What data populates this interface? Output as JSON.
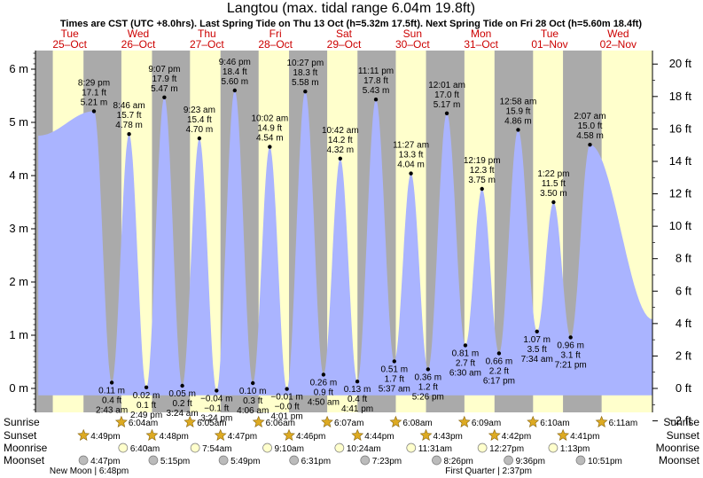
{
  "chart_data": {
    "type": "area",
    "title": "Langtou (max. tidal range 6.04m 19.8ft)",
    "subtitle": "Times are CST (UTC +8.0hrs). Last Spring Tide on Thu 13 Oct (h=5.32m 17.5ft). Next Spring Tide on Fri 28 Oct (h=5.60m 18.4ft)",
    "days": [
      {
        "dow": "Tue",
        "date": "25–Oct"
      },
      {
        "dow": "Wed",
        "date": "26–Oct"
      },
      {
        "dow": "Thu",
        "date": "27–Oct"
      },
      {
        "dow": "Fri",
        "date": "28–Oct"
      },
      {
        "dow": "Sat",
        "date": "29–Oct"
      },
      {
        "dow": "Sun",
        "date": "30–Oct"
      },
      {
        "dow": "Mon",
        "date": "31–Oct"
      },
      {
        "dow": "Tue",
        "date": "01–Nov"
      },
      {
        "dow": "Wed",
        "date": "02–Nov"
      }
    ],
    "y_left": {
      "unit": "m",
      "range": [
        -0.45,
        6.35
      ],
      "ticks": [
        "6 m",
        "5 m",
        "4 m",
        "3 m",
        "2 m",
        "1 m",
        "0 m"
      ],
      "tick_values": [
        6,
        5,
        4,
        3,
        2,
        1,
        0
      ]
    },
    "y_right": {
      "unit": "ft",
      "ticks": [
        "20 ft",
        "18 ft",
        "16 ft",
        "14 ft",
        "12 ft",
        "10 ft",
        "8 ft",
        "6 ft",
        "4 ft",
        "2 ft",
        "0 ft",
        "−2 ft"
      ],
      "tick_values": [
        20,
        18,
        16,
        14,
        12,
        10,
        8,
        6,
        4,
        2,
        0,
        -2
      ]
    },
    "x_range_hours": [
      0,
      216
    ],
    "series_start": {
      "t": 1.0,
      "h": 4.75
    },
    "series_end": {
      "t": 216.0,
      "h": 1.3
    },
    "tides": [
      {
        "t": 20.48,
        "h": 5.21,
        "type": "high",
        "time": "8:29 pm",
        "ft": "17.1 ft",
        "m": "5.21 m"
      },
      {
        "t": 26.72,
        "h": 0.11,
        "type": "low",
        "time": "2:43 am",
        "ft": "0.4 ft",
        "m": "0.11 m"
      },
      {
        "t": 32.77,
        "h": 4.78,
        "type": "high",
        "time": "8:46 am",
        "ft": "15.7 ft",
        "m": "4.78 m"
      },
      {
        "t": 38.82,
        "h": 0.02,
        "type": "low",
        "time": "2:49 pm",
        "ft": "0.1 ft",
        "m": "0.02 m"
      },
      {
        "t": 45.12,
        "h": 5.47,
        "type": "high",
        "time": "9:07 pm",
        "ft": "17.9 ft",
        "m": "5.47 m"
      },
      {
        "t": 51.4,
        "h": 0.05,
        "type": "low",
        "time": "3:24 am",
        "ft": "0.2 ft",
        "m": "0.05 m"
      },
      {
        "t": 57.38,
        "h": 4.7,
        "type": "high",
        "time": "9:23 am",
        "ft": "15.4 ft",
        "m": "4.70 m"
      },
      {
        "t": 63.4,
        "h": -0.04,
        "type": "low",
        "time": "3:24 pm",
        "ft": "−0.1 ft",
        "m": "−0.04 m"
      },
      {
        "t": 69.77,
        "h": 5.6,
        "type": "high",
        "time": "9:46 pm",
        "ft": "18.4 ft",
        "m": "5.60 m"
      },
      {
        "t": 76.1,
        "h": 0.1,
        "type": "low",
        "time": "4:06 am",
        "ft": "0.3 ft",
        "m": "0.10 m"
      },
      {
        "t": 82.03,
        "h": 4.54,
        "type": "high",
        "time": "10:02 am",
        "ft": "14.9 ft",
        "m": "4.54 m"
      },
      {
        "t": 88.02,
        "h": -0.01,
        "type": "low",
        "time": "4:01 pm",
        "ft": "−0.0 ft",
        "m": "−0.01 m"
      },
      {
        "t": 94.45,
        "h": 5.58,
        "type": "high",
        "time": "10:27 pm",
        "ft": "18.3 ft",
        "m": "5.58 m"
      },
      {
        "t": 100.83,
        "h": 0.26,
        "type": "low",
        "time": "4:50 am",
        "ft": "0.9 ft",
        "m": "0.26 m"
      },
      {
        "t": 106.7,
        "h": 4.32,
        "type": "high",
        "time": "10:42 am",
        "ft": "14.2 ft",
        "m": "4.32 m"
      },
      {
        "t": 112.68,
        "h": 0.13,
        "type": "low",
        "time": "4:41 pm",
        "ft": "0.4 ft",
        "m": "0.13 m"
      },
      {
        "t": 119.18,
        "h": 5.43,
        "type": "high",
        "time": "11:11 pm",
        "ft": "17.8 ft",
        "m": "5.43 m"
      },
      {
        "t": 125.62,
        "h": 0.51,
        "type": "low",
        "time": "5:37 am",
        "ft": "1.7 ft",
        "m": "0.51 m"
      },
      {
        "t": 131.45,
        "h": 4.04,
        "type": "high",
        "time": "11:27 am",
        "ft": "13.3 ft",
        "m": "4.04 m"
      },
      {
        "t": 137.43,
        "h": 0.36,
        "type": "low",
        "time": "5:26 pm",
        "ft": "1.2 ft",
        "m": "0.36 m"
      },
      {
        "t": 144.02,
        "h": 5.17,
        "type": "high",
        "time": "12:01 am",
        "ft": "17.0 ft",
        "m": "5.17 m"
      },
      {
        "t": 150.5,
        "h": 0.81,
        "type": "low",
        "time": "6:30 am",
        "ft": "2.7 ft",
        "m": "0.81 m"
      },
      {
        "t": 156.32,
        "h": 3.75,
        "type": "high",
        "time": "12:19 pm",
        "ft": "12.3 ft",
        "m": "3.75 m"
      },
      {
        "t": 162.28,
        "h": 0.66,
        "type": "low",
        "time": "6:17 pm",
        "ft": "2.2 ft",
        "m": "0.66 m"
      },
      {
        "t": 168.97,
        "h": 4.86,
        "type": "high",
        "time": "12:58 am",
        "ft": "15.9 ft",
        "m": "4.86 m"
      },
      {
        "t": 175.57,
        "h": 1.07,
        "type": "low",
        "time": "7:34 am",
        "ft": "3.5 ft",
        "m": "1.07 m"
      },
      {
        "t": 181.37,
        "h": 3.5,
        "type": "high",
        "time": "1:22 pm",
        "ft": "11.5 ft",
        "m": "3.50 m"
      },
      {
        "t": 187.35,
        "h": 0.96,
        "type": "low",
        "time": "7:21 pm",
        "ft": "3.1 ft",
        "m": "0.96 m"
      },
      {
        "t": 194.12,
        "h": 4.58,
        "type": "high",
        "time": "2:07 am",
        "ft": "15.0 ft",
        "m": "4.58 m"
      }
    ],
    "nights": [
      {
        "start": 0,
        "end": 6.07
      },
      {
        "start": 16.82,
        "end": 30.08
      },
      {
        "start": 40.8,
        "end": 54.1
      },
      {
        "start": 64.78,
        "end": 78.12
      },
      {
        "start": 88.77,
        "end": 102.13
      },
      {
        "start": 112.73,
        "end": 126.15
      },
      {
        "start": 136.72,
        "end": 150.17
      },
      {
        "start": 160.7,
        "end": 174.2
      },
      {
        "start": 184.68,
        "end": 198.2
      }
    ],
    "colors": {
      "day": "#ffffcc",
      "night": "#aaaaaa",
      "water": "#aab4ff",
      "axis": "#000000",
      "day_label": "#cc0000",
      "sun": "#ddaa22",
      "moon": "#ffffcc",
      "moonset": "#bbbbbb"
    }
  },
  "astro": {
    "row_labels": [
      "Sunrise",
      "Sunset",
      "Moonrise",
      "Moonset"
    ],
    "sunrise": [
      {
        "t": 30.07,
        "label": "6:04am"
      },
      {
        "t": 54.08,
        "label": "6:05am"
      },
      {
        "t": 78.1,
        "label": "6:06am"
      },
      {
        "t": 102.12,
        "label": "6:07am"
      },
      {
        "t": 126.13,
        "label": "6:08am"
      },
      {
        "t": 150.15,
        "label": "6:09am"
      },
      {
        "t": 174.17,
        "label": "6:10am"
      },
      {
        "t": 198.18,
        "label": "6:11am"
      }
    ],
    "sunset": [
      {
        "t": 16.82,
        "label": "4:49pm"
      },
      {
        "t": 40.8,
        "label": "4:48pm"
      },
      {
        "t": 64.78,
        "label": "4:47pm"
      },
      {
        "t": 88.77,
        "label": "4:46pm"
      },
      {
        "t": 112.73,
        "label": "4:44pm"
      },
      {
        "t": 136.72,
        "label": "4:43pm"
      },
      {
        "t": 160.7,
        "label": "4:42pm"
      },
      {
        "t": 184.68,
        "label": "4:41pm"
      }
    ],
    "moonrise": [
      {
        "t": 30.67,
        "label": "6:40am"
      },
      {
        "t": 55.9,
        "label": "7:54am"
      },
      {
        "t": 81.17,
        "label": "9:10am"
      },
      {
        "t": 106.4,
        "label": "10:24am"
      },
      {
        "t": 131.52,
        "label": "11:31am"
      },
      {
        "t": 156.45,
        "label": "12:27pm"
      },
      {
        "t": 181.22,
        "label": "1:13pm"
      }
    ],
    "moonset": [
      {
        "t": 16.78,
        "label": "4:47pm"
      },
      {
        "t": 41.25,
        "label": "5:15pm"
      },
      {
        "t": 65.82,
        "label": "5:49pm"
      },
      {
        "t": 90.52,
        "label": "6:31pm"
      },
      {
        "t": 115.38,
        "label": "7:23pm"
      },
      {
        "t": 140.43,
        "label": "8:26pm"
      },
      {
        "t": 165.6,
        "label": "9:36pm"
      },
      {
        "t": 190.85,
        "label": "10:51pm"
      }
    ],
    "notes": [
      {
        "t": 18.8,
        "label": "New Moon | 6:48pm"
      },
      {
        "t": 158.62,
        "label": "First Quarter | 2:37pm"
      }
    ]
  }
}
